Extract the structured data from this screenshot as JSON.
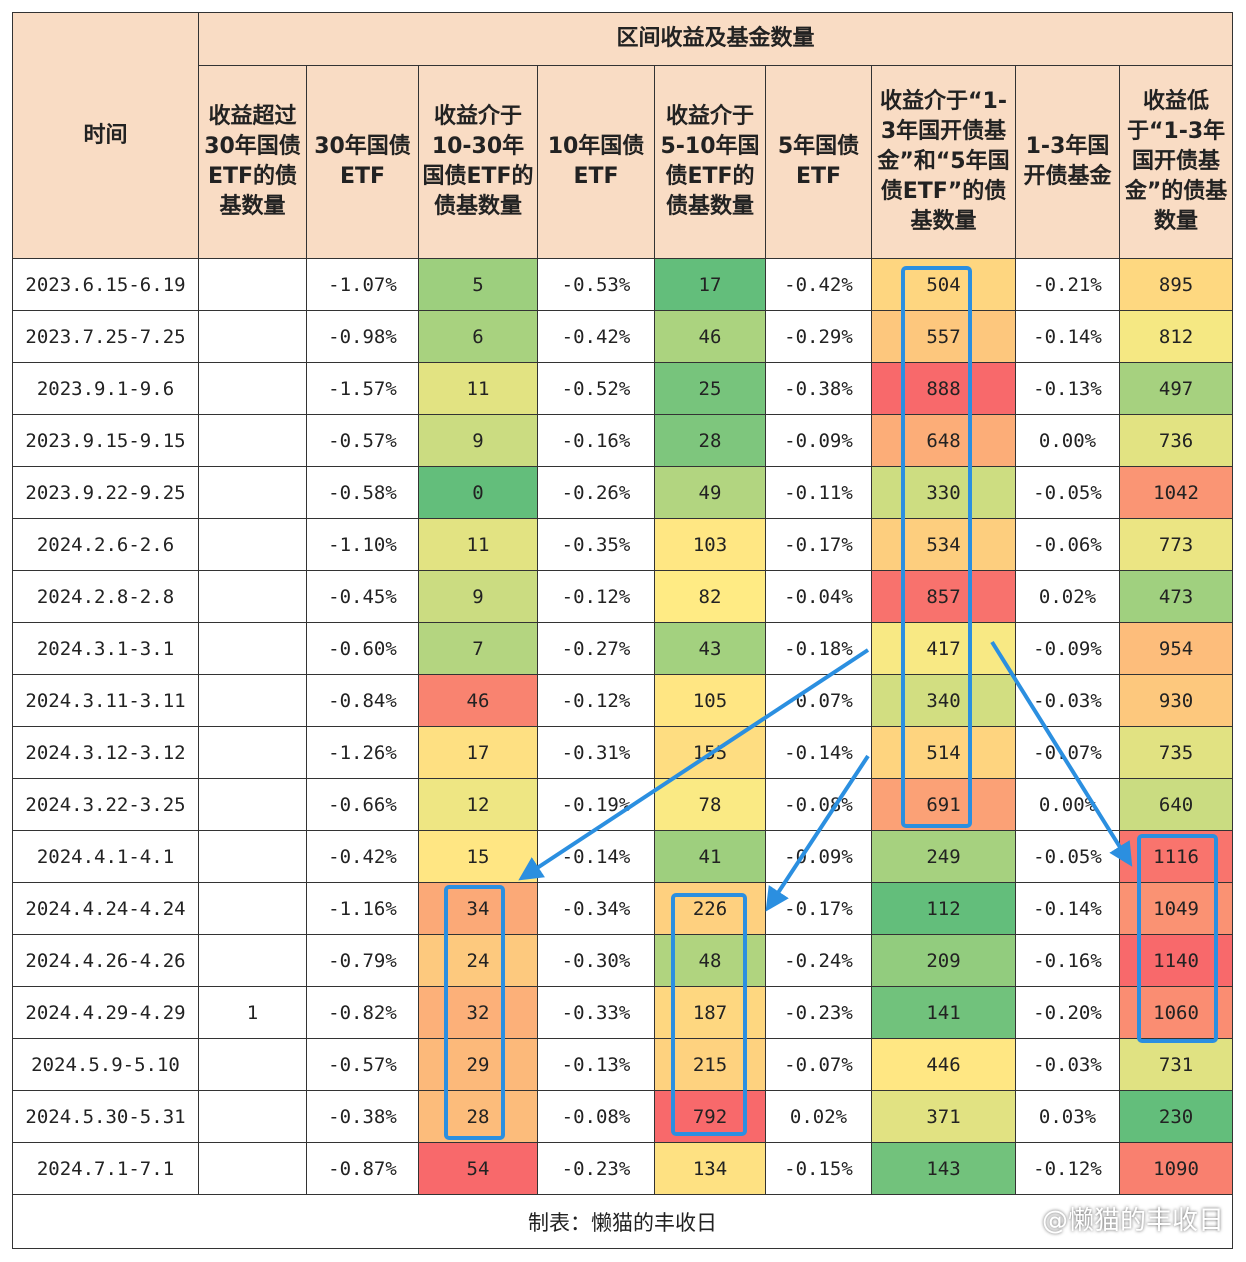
{
  "table": {
    "group_header": "区间收益及基金数量",
    "columns": [
      "时间",
      "收益超过30年国债ETF的债基数量",
      "30年国债ETF",
      "收益介于10-30年国债ETF的债基数量",
      "10年国债ETF",
      "收益介于5-10年国债ETF的债基数量",
      "5年国债ETF",
      "收益介于“1-3年国开债基金”和“5年国债ETF”的债基数量",
      "1-3年国开债基金",
      "收益低于“1-3年国开债基金”的债基数量"
    ],
    "rows": [
      [
        "2023.6.15-6.19",
        null,
        "-1.07%",
        5,
        "-0.53%",
        17,
        "-0.42%",
        504,
        "-0.21%",
        895
      ],
      [
        "2023.7.25-7.25",
        null,
        "-0.98%",
        6,
        "-0.42%",
        46,
        "-0.29%",
        557,
        "-0.14%",
        812
      ],
      [
        "2023.9.1-9.6",
        null,
        "-1.57%",
        11,
        "-0.52%",
        25,
        "-0.38%",
        888,
        "-0.13%",
        497
      ],
      [
        "2023.9.15-9.15",
        null,
        "-0.57%",
        9,
        "-0.16%",
        28,
        "-0.09%",
        648,
        "0.00%",
        736
      ],
      [
        "2023.9.22-9.25",
        null,
        "-0.58%",
        0,
        "-0.26%",
        49,
        "-0.11%",
        330,
        "-0.05%",
        1042
      ],
      [
        "2024.2.6-2.6",
        null,
        "-1.10%",
        11,
        "-0.35%",
        103,
        "-0.17%",
        534,
        "-0.06%",
        773
      ],
      [
        "2024.2.8-2.8",
        null,
        "-0.45%",
        9,
        "-0.12%",
        82,
        "-0.04%",
        857,
        "0.02%",
        473
      ],
      [
        "2024.3.1-3.1",
        null,
        "-0.60%",
        7,
        "-0.27%",
        43,
        "-0.18%",
        417,
        "-0.09%",
        954
      ],
      [
        "2024.3.11-3.11",
        null,
        "-0.84%",
        46,
        "-0.12%",
        105,
        "-0.07%",
        340,
        "-0.03%",
        930
      ],
      [
        "2024.3.12-3.12",
        null,
        "-1.26%",
        17,
        "-0.31%",
        155,
        "-0.14%",
        514,
        "-0.07%",
        735
      ],
      [
        "2024.3.22-3.25",
        null,
        "-0.66%",
        12,
        "-0.19%",
        78,
        "-0.08%",
        691,
        "0.00%",
        640
      ],
      [
        "2024.4.1-4.1",
        null,
        "-0.42%",
        15,
        "-0.14%",
        41,
        "-0.09%",
        249,
        "-0.05%",
        1116
      ],
      [
        "2024.4.24-4.24",
        null,
        "-1.16%",
        34,
        "-0.34%",
        226,
        "-0.17%",
        112,
        "-0.14%",
        1049
      ],
      [
        "2024.4.26-4.26",
        null,
        "-0.79%",
        24,
        "-0.30%",
        48,
        "-0.24%",
        209,
        "-0.16%",
        1140
      ],
      [
        "2024.4.29-4.29",
        1,
        "-0.82%",
        32,
        "-0.33%",
        187,
        "-0.23%",
        141,
        "-0.20%",
        1060
      ],
      [
        "2024.5.9-5.10",
        null,
        "-0.57%",
        29,
        "-0.13%",
        215,
        "-0.07%",
        446,
        "-0.03%",
        731
      ],
      [
        "2024.5.30-5.31",
        null,
        "-0.38%",
        28,
        "-0.08%",
        792,
        "0.02%",
        371,
        "0.03%",
        230
      ],
      [
        "2024.7.1-7.1",
        null,
        "-0.87%",
        54,
        "-0.23%",
        134,
        "-0.15%",
        143,
        "-0.12%",
        1090
      ]
    ],
    "footer": "制表：懒猫的丰收日"
  },
  "watermark": "@懒猫的丰收日"
}
